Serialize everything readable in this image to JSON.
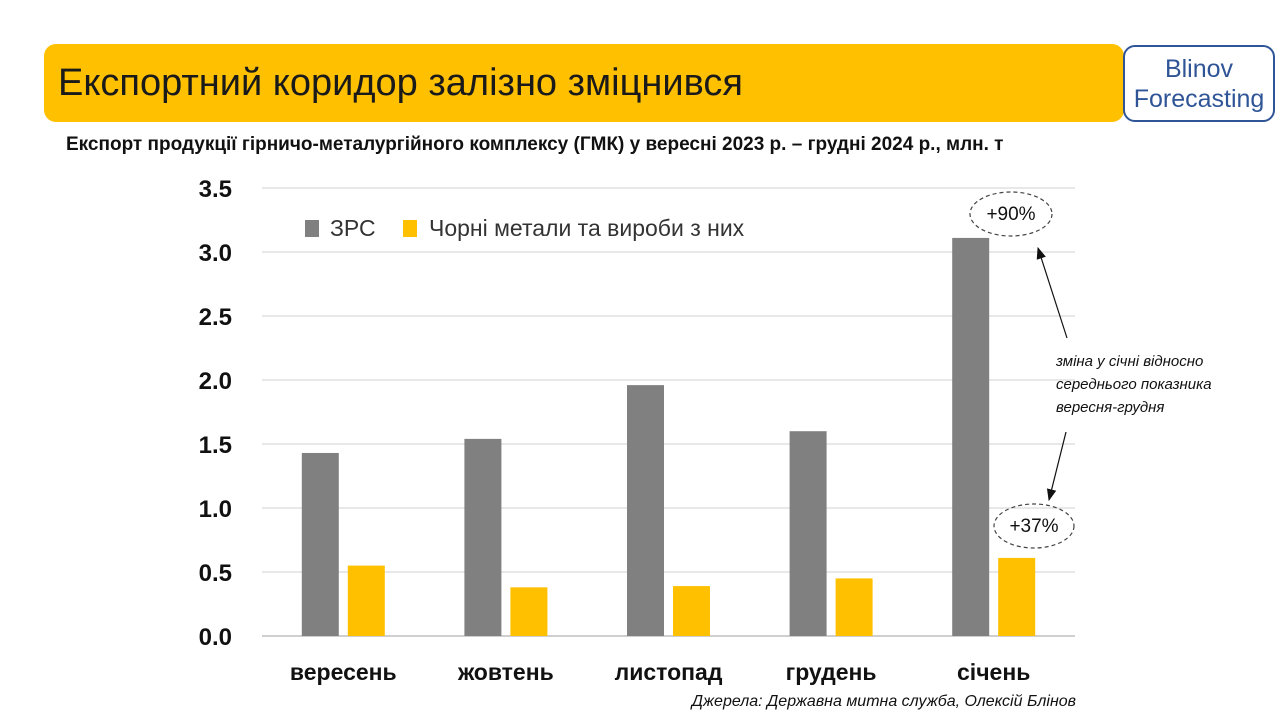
{
  "header": {
    "title": "Експортний коридор залізно зміцнився",
    "brand_line1": "Blinov",
    "brand_line2": "Forecasting"
  },
  "subtitle": "Експорт продукції гірничо-металургійного комплексу (ГМК) у вересні 2023 р. – грудні 2024 р., млн. т",
  "source": "Джерела: Державна митна служба, Олексій Блінов",
  "colors": {
    "accent": "#FFC000",
    "series_grey": "#808080",
    "brand_blue": "#2F5597"
  },
  "chart_data": {
    "type": "bar",
    "categories": [
      "вересень",
      "жовтень",
      "листопад",
      "грудень",
      "січень"
    ],
    "series": [
      {
        "name": "ЗРС",
        "color": "#808080",
        "values": [
          1.43,
          1.54,
          1.96,
          1.6,
          3.11
        ]
      },
      {
        "name": "Чорні метали та вироби з них",
        "color": "#FFC000",
        "values": [
          0.55,
          0.38,
          0.39,
          0.45,
          0.61
        ]
      }
    ],
    "ylim": [
      0,
      3.5
    ],
    "yticks": [
      "0.0",
      "0.5",
      "1.0",
      "1.5",
      "2.0",
      "2.5",
      "3.0",
      "3.5"
    ],
    "grid": true,
    "legend_position": "top-left",
    "annotations": {
      "grs_change": "+90%",
      "metals_change": "+37%",
      "note_line1": "зміна у січні відносно",
      "note_line2": "середнього показника",
      "note_line3": "вересня-грудня"
    }
  }
}
